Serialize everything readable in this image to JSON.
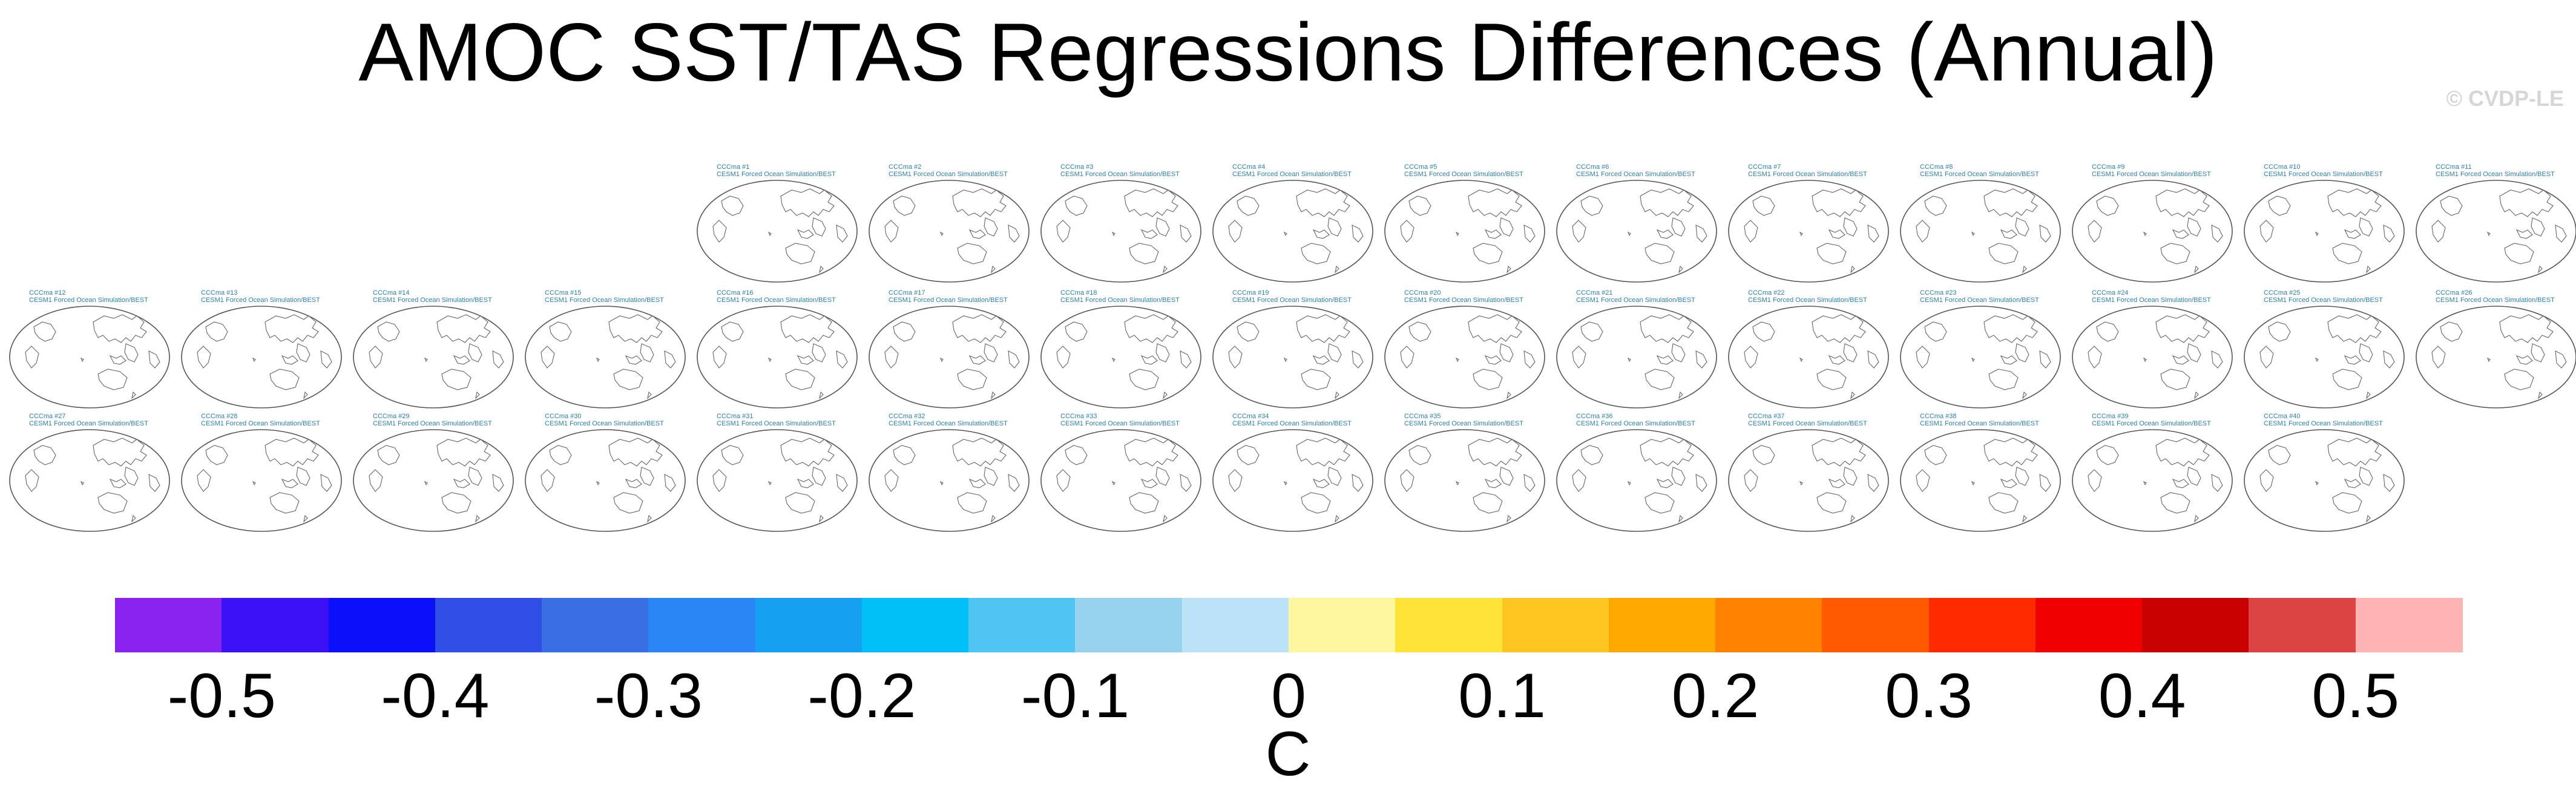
{
  "title": "AMOC SST/TAS Regressions Differences (Annual)",
  "watermark": "© CVDP-LE",
  "panel_subtitle": "CESM1 Forced Ocean Simulation/BEST",
  "panels": [
    "CCCma #1",
    "CCCma #2",
    "CCCma #3",
    "CCCma #4",
    "CCCma #5",
    "CCCma #6",
    "CCCma #7",
    "CCCma #8",
    "CCCma #9",
    "CCCma #10",
    "CCCma #11",
    "CCCma #12",
    "CCCma #13",
    "CCCma #14",
    "CCCma #15",
    "CCCma #16",
    "CCCma #17",
    "CCCma #18",
    "CCCma #19",
    "CCCma #20",
    "CCCma #21",
    "CCCma #22",
    "CCCma #23",
    "CCCma #24",
    "CCCma #25",
    "CCCma #26",
    "CCCma #27",
    "CCCma #28",
    "CCCma #29",
    "CCCma #30",
    "CCCma #31",
    "CCCma #32",
    "CCCma #33",
    "CCCma #34",
    "CCCma #35",
    "CCCma #36",
    "CCCma #37",
    "CCCma #38",
    "CCCma #39",
    "CCCma #40"
  ],
  "chart_data": {
    "type": "heatmap",
    "title": "AMOC SST/TAS Regressions Differences (Annual)",
    "colorbar": {
      "units": "C",
      "ticks": [
        "-0.5",
        "-0.4",
        "-0.3",
        "-0.2",
        "-0.1",
        "0",
        "0.1",
        "0.2",
        "0.3",
        "0.4",
        "0.5"
      ],
      "colors": [
        "#8a22f0",
        "#3a10f5",
        "#0c10f8",
        "#2f4fe6",
        "#3a6fe3",
        "#2a86f5",
        "#16a0f2",
        "#00c0f8",
        "#4fc6f2",
        "#96d2ee",
        "#bbe2f6",
        "#fff7a0",
        "#ffe338",
        "#ffc520",
        "#ffa800",
        "#ff8200",
        "#ff5a00",
        "#ff2a00",
        "#f00000",
        "#c80000",
        "#dc4444",
        "#ffb4b4"
      ]
    }
  }
}
